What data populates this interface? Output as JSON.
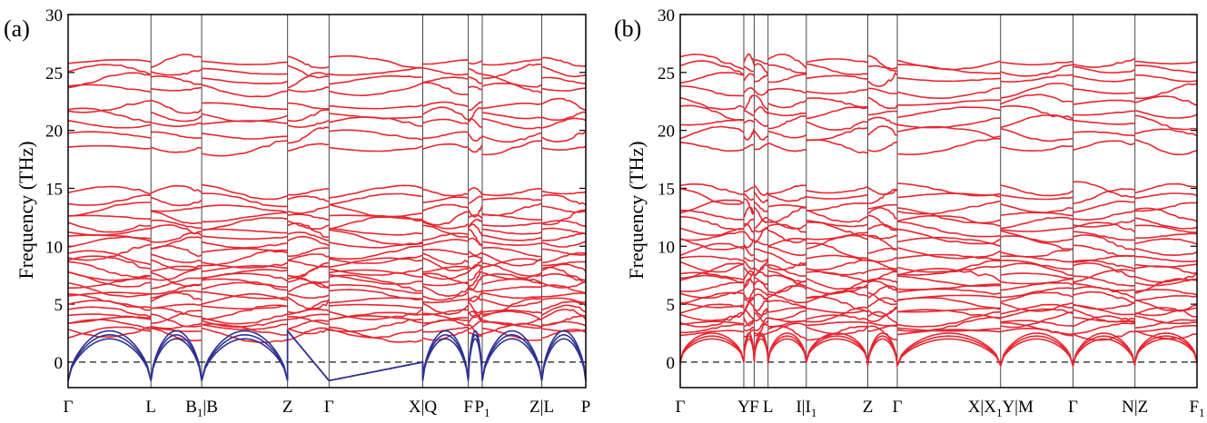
{
  "chart_data": [
    {
      "panel_label": "(a)",
      "type": "line",
      "ylabel": "Frequency (THz)",
      "ylim": [
        -2.2,
        30
      ],
      "yticks": [
        "0",
        "5",
        "10",
        "15",
        "20",
        "25",
        "30"
      ],
      "xticks": [
        {
          "label": "Γ",
          "sub": ""
        },
        {
          "label": "L",
          "sub": ""
        },
        {
          "label": "B",
          "sub": "1",
          "post": "|B"
        },
        {
          "label": "Z",
          "sub": ""
        },
        {
          "label": "Γ",
          "sub": ""
        },
        {
          "label": "X|Q",
          "sub": ""
        },
        {
          "label": "F",
          "sub": ""
        },
        {
          "label": "P",
          "sub": "1"
        },
        {
          "label": "Z|L",
          "sub": ""
        },
        {
          "label": "P",
          "sub": ""
        }
      ],
      "x_positions": [
        0,
        0.16,
        0.258,
        0.424,
        0.504,
        0.685,
        0.773,
        0.8,
        0.915,
        1.0
      ],
      "zero_line": true,
      "optical_bands_thz": [
        2.4,
        2.8,
        3.2,
        3.6,
        3.9,
        4.3,
        4.8,
        5.3,
        5.8,
        6.3,
        6.8,
        7.2,
        7.6,
        8.0,
        8.5,
        9.0,
        9.5,
        10.3,
        10.8,
        11.3,
        11.9,
        12.5,
        13.2,
        14.0,
        14.7,
        18.5,
        19.6,
        20.6,
        21.3,
        22.1,
        23.6,
        24.3,
        25.1,
        25.9
      ],
      "imaginary_min_thz": -1.6,
      "acoustic_max_thz": 2.7,
      "series": [
        {
          "color": "#e8262f"
        },
        {
          "color": "#2e3192"
        }
      ]
    },
    {
      "panel_label": "(b)",
      "type": "line",
      "ylabel": "Frequency (THz)",
      "ylim": [
        -2.2,
        30
      ],
      "yticks": [
        "0",
        "5",
        "10",
        "15",
        "20",
        "25",
        "30"
      ],
      "xticks": [
        {
          "label": "Γ",
          "sub": ""
        },
        {
          "label": "Y",
          "sub": ""
        },
        {
          "label": "F",
          "sub": ""
        },
        {
          "label": "L",
          "sub": ""
        },
        {
          "label": "I|I",
          "sub": "1"
        },
        {
          "label": "Z",
          "sub": ""
        },
        {
          "label": "Γ",
          "sub": ""
        },
        {
          "label": "X|X",
          "sub": "1",
          "post": "Y|M"
        },
        {
          "label": "Γ",
          "sub": ""
        },
        {
          "label": "N|Z",
          "sub": ""
        },
        {
          "label": "F",
          "sub": "1"
        }
      ],
      "x_positions": [
        0,
        0.123,
        0.143,
        0.17,
        0.244,
        0.363,
        0.42,
        0.62,
        0.76,
        0.88,
        1.0
      ],
      "zero_line": true,
      "optical_bands_thz": [
        2.5,
        2.9,
        3.3,
        3.7,
        4.1,
        4.5,
        5.0,
        5.5,
        6.0,
        6.5,
        7.0,
        7.4,
        7.9,
        8.4,
        8.9,
        9.6,
        10.3,
        10.9,
        11.5,
        12.0,
        12.7,
        13.4,
        14.3,
        14.9,
        18.6,
        19.7,
        20.7,
        21.5,
        22.4,
        23.4,
        24.5,
        25.3,
        25.9
      ],
      "imaginary_min_thz": -0.3,
      "acoustic_max_thz": 2.5,
      "series": [
        {
          "color": "#e8262f"
        }
      ]
    }
  ]
}
